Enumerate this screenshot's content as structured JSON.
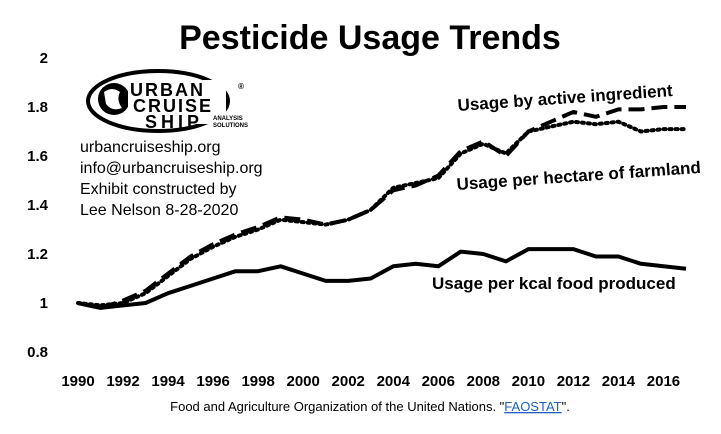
{
  "chart_data": {
    "type": "line",
    "title": "Pesticide Usage Trends",
    "xlabel": "",
    "ylabel": "",
    "xlim": [
      1990,
      2017
    ],
    "ylim": [
      0.8,
      2.0
    ],
    "y_ticks": [
      "2",
      "1.8",
      "1.6",
      "1.4",
      "1.2",
      "1",
      "0.8"
    ],
    "x_ticks": [
      "1990",
      "1992",
      "1994",
      "1996",
      "1998",
      "2000",
      "2002",
      "2004",
      "2006",
      "2008",
      "2010",
      "2012",
      "2014",
      "2016"
    ],
    "grid": false,
    "x": [
      1990,
      1991,
      1992,
      1993,
      1994,
      1995,
      1996,
      1997,
      1998,
      1999,
      2000,
      2001,
      2002,
      2003,
      2004,
      2005,
      2006,
      2007,
      2008,
      2009,
      2010,
      2011,
      2012,
      2013,
      2014,
      2015,
      2016,
      2017
    ],
    "series": [
      {
        "name": "Usage by active ingredient",
        "style": "long-dash",
        "values": [
          1.0,
          0.98,
          1.01,
          1.05,
          1.12,
          1.19,
          1.24,
          1.28,
          1.31,
          1.35,
          1.34,
          1.32,
          1.34,
          1.38,
          1.46,
          1.48,
          1.52,
          1.62,
          1.66,
          1.6,
          1.7,
          1.74,
          1.78,
          1.76,
          1.79,
          1.79,
          1.8,
          1.8
        ]
      },
      {
        "name": "Usage per hectare of farmland",
        "style": "dotted",
        "values": [
          1.0,
          0.99,
          1.0,
          1.04,
          1.11,
          1.18,
          1.23,
          1.27,
          1.3,
          1.34,
          1.33,
          1.32,
          1.34,
          1.38,
          1.47,
          1.49,
          1.51,
          1.61,
          1.65,
          1.61,
          1.7,
          1.72,
          1.74,
          1.73,
          1.74,
          1.7,
          1.71,
          1.71
        ]
      },
      {
        "name": "Usage per kcal food produced",
        "style": "solid",
        "values": [
          1.0,
          0.98,
          0.99,
          1.0,
          1.04,
          1.07,
          1.1,
          1.13,
          1.13,
          1.15,
          1.12,
          1.09,
          1.09,
          1.1,
          1.15,
          1.16,
          1.15,
          1.21,
          1.2,
          1.17,
          1.22,
          1.22,
          1.22,
          1.19,
          1.19,
          1.16,
          1.15,
          1.14
        ]
      }
    ],
    "colors": {
      "line": "#000000",
      "background": "#ffffff",
      "link": "#1f5fbf"
    }
  },
  "logo": {
    "line1": "URBAN",
    "line2": "CRUISE",
    "line3": "SHIP",
    "sub1": "ANALYSIS",
    "sub2": "SOLUTIONS",
    "mark": "®"
  },
  "info_lines": [
    "urbancruiseship.org",
    "info@urbancruiseship.org",
    "Exhibit constructed by",
    "Lee Nelson 8-28-2020"
  ],
  "source": {
    "prefix": "Food and Agriculture Organization of the United Nations. \"",
    "link": "FAOSTAT",
    "suffix": "\"."
  }
}
